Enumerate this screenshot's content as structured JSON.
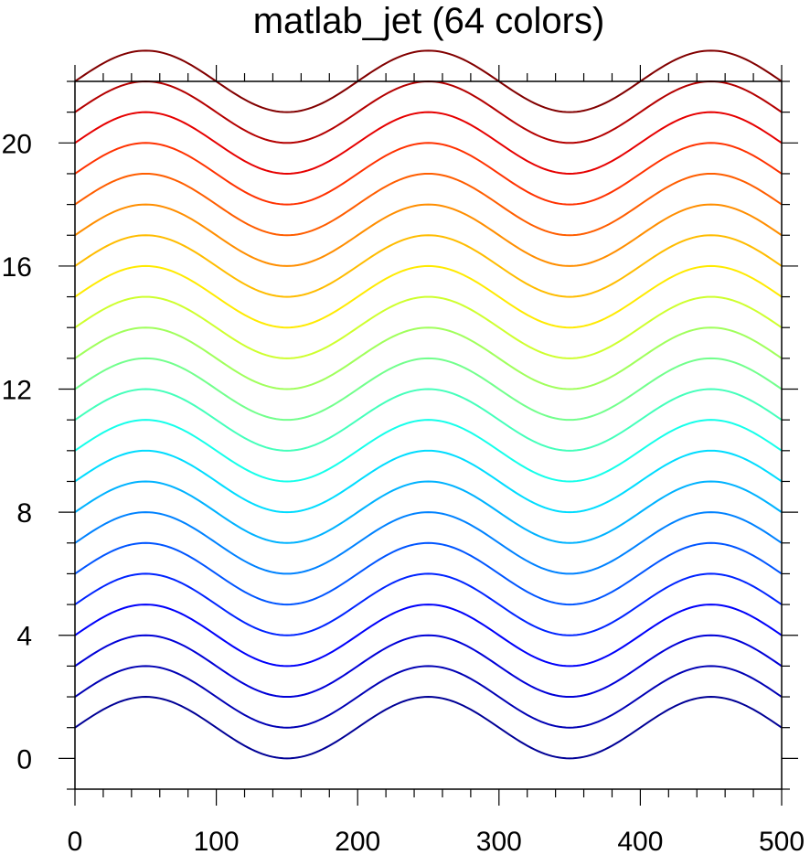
{
  "chart_data": {
    "type": "line",
    "title": "matlab_jet (64 colors)",
    "xlabel": "",
    "ylabel": "",
    "xlim": [
      0,
      500
    ],
    "ylim": [
      -1,
      22
    ],
    "x_ticks": [
      0,
      100,
      200,
      300,
      400,
      500
    ],
    "x_minor_step": 20,
    "y_ticks": [
      0,
      4,
      8,
      12,
      16,
      20
    ],
    "y_minor_step": 1,
    "grid": false,
    "legend": "none",
    "curve": {
      "function": "y = offset + 1 + sin(2*pi*x/200)",
      "x_start": 0,
      "x_end": 500,
      "x_step": 2.5
    },
    "series": [
      {
        "offset": 0,
        "color": "#000096"
      },
      {
        "offset": 1,
        "color": "#0000b4"
      },
      {
        "offset": 2,
        "color": "#0000d7"
      },
      {
        "offset": 3,
        "color": "#0000fa"
      },
      {
        "offset": 4,
        "color": "#0024ff"
      },
      {
        "offset": 5,
        "color": "#0055ff"
      },
      {
        "offset": 6,
        "color": "#0082ff"
      },
      {
        "offset": 7,
        "color": "#00b2ff"
      },
      {
        "offset": 8,
        "color": "#00dcff"
      },
      {
        "offset": 9,
        "color": "#14ffea"
      },
      {
        "offset": 10,
        "color": "#44ffba"
      },
      {
        "offset": 11,
        "color": "#72ff8c"
      },
      {
        "offset": 12,
        "color": "#a0ff5c"
      },
      {
        "offset": 13,
        "color": "#ceff2e"
      },
      {
        "offset": 14,
        "color": "#ffea00"
      },
      {
        "offset": 15,
        "color": "#ffbc00"
      },
      {
        "offset": 16,
        "color": "#ff8e00"
      },
      {
        "offset": 17,
        "color": "#ff5e00"
      },
      {
        "offset": 18,
        "color": "#ff3200"
      },
      {
        "offset": 19,
        "color": "#e60000"
      },
      {
        "offset": 20,
        "color": "#b40000"
      },
      {
        "offset": 21,
        "color": "#820000"
      }
    ]
  }
}
